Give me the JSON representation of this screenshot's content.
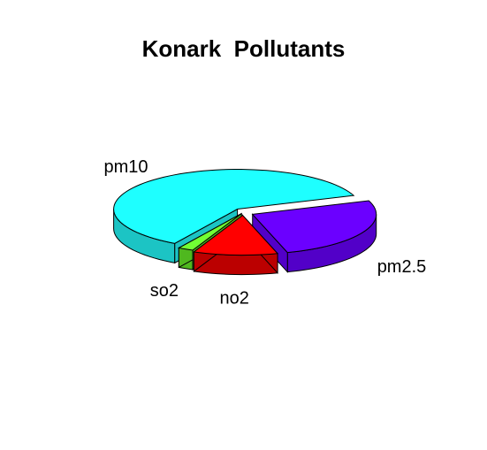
{
  "chart_data": {
    "type": "pie",
    "title": "Konark  Pollutants",
    "style": "3d-exploded",
    "slices": [
      {
        "label": "pm10",
        "value": 61,
        "color": "#1effff",
        "side_color": "#1cc4c4"
      },
      {
        "label": "so2",
        "value": 2,
        "color": "#72ff34",
        "side_color": "#4fb81f"
      },
      {
        "label": "no2",
        "value": 11,
        "color": "#ff0000",
        "side_color": "#bb0000"
      },
      {
        "label": "pm2.5",
        "value": 26,
        "color": "#6b00ff",
        "side_color": "#5200c8"
      }
    ]
  }
}
